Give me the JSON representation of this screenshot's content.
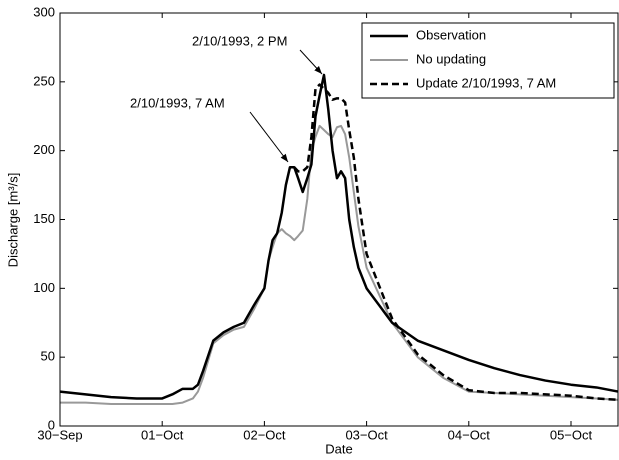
{
  "chart_data": {
    "type": "line",
    "xlabel": "Date",
    "ylabel": "Discharge [m³/s]",
    "x": [
      0,
      0.25,
      0.5,
      0.75,
      1.0,
      1.1,
      1.2,
      1.3,
      1.35,
      1.4,
      1.5,
      1.6,
      1.7,
      1.8,
      1.9,
      2.0,
      2.04,
      2.08,
      2.125,
      2.17,
      2.21,
      2.25,
      2.292,
      2.33,
      2.375,
      2.42,
      2.46,
      2.5,
      2.54,
      2.583,
      2.625,
      2.667,
      2.71,
      2.75,
      2.79,
      2.83,
      2.875,
      2.92,
      3.0,
      3.25,
      3.5,
      3.75,
      4.0,
      4.25,
      4.5,
      4.75,
      5.0,
      5.25,
      5.46
    ],
    "series": [
      {
        "name": "Observation",
        "color": "#000000",
        "dashed": false,
        "values": [
          25,
          23,
          21,
          20,
          20,
          23,
          27,
          27,
          30,
          40,
          62,
          68,
          72,
          75,
          88,
          100,
          120,
          135,
          140,
          155,
          175,
          188,
          188,
          180,
          170,
          180,
          190,
          225,
          240,
          255,
          230,
          200,
          180,
          185,
          180,
          150,
          130,
          115,
          100,
          75,
          62,
          55,
          48,
          42,
          37,
          33,
          30,
          28,
          25
        ]
      },
      {
        "name": "No updating",
        "color": "#999999",
        "dashed": false,
        "values": [
          17,
          17,
          16,
          16,
          16,
          16,
          17,
          20,
          25,
          35,
          60,
          66,
          70,
          72,
          85,
          100,
          120,
          130,
          140,
          143,
          140,
          138,
          135,
          138,
          142,
          165,
          200,
          210,
          218,
          215,
          212,
          210,
          217,
          218,
          212,
          195,
          170,
          145,
          115,
          75,
          50,
          35,
          25,
          24,
          23,
          22,
          21,
          20,
          19
        ]
      },
      {
        "name": "Update 2/10/1993, 7 AM",
        "color": "#000000",
        "dashed": true,
        "values": [
          null,
          null,
          null,
          null,
          null,
          null,
          null,
          null,
          null,
          null,
          null,
          null,
          null,
          null,
          null,
          null,
          null,
          null,
          null,
          null,
          null,
          null,
          188,
          185,
          185,
          188,
          210,
          245,
          248,
          245,
          242,
          237,
          238,
          238,
          235,
          215,
          195,
          165,
          125,
          78,
          52,
          37,
          26,
          24,
          24,
          23,
          22,
          20,
          19
        ]
      }
    ],
    "xlim": [
      0,
      5.46
    ],
    "xticks": [
      {
        "value": 0,
        "label": "30−Sep"
      },
      {
        "value": 1,
        "label": "01−Oct"
      },
      {
        "value": 2,
        "label": "02−Oct"
      },
      {
        "value": 3,
        "label": "03−Oct"
      },
      {
        "value": 4,
        "label": "04−Oct"
      },
      {
        "value": 5,
        "label": "05−Oct"
      }
    ],
    "ylim": [
      0,
      300
    ],
    "yticks": [
      0,
      50,
      100,
      150,
      200,
      250,
      300
    ],
    "grid": false,
    "legend": "upper right",
    "annotations": [
      "2/10/1993, 7 AM",
      "2/10/1993, 2 PM"
    ]
  }
}
